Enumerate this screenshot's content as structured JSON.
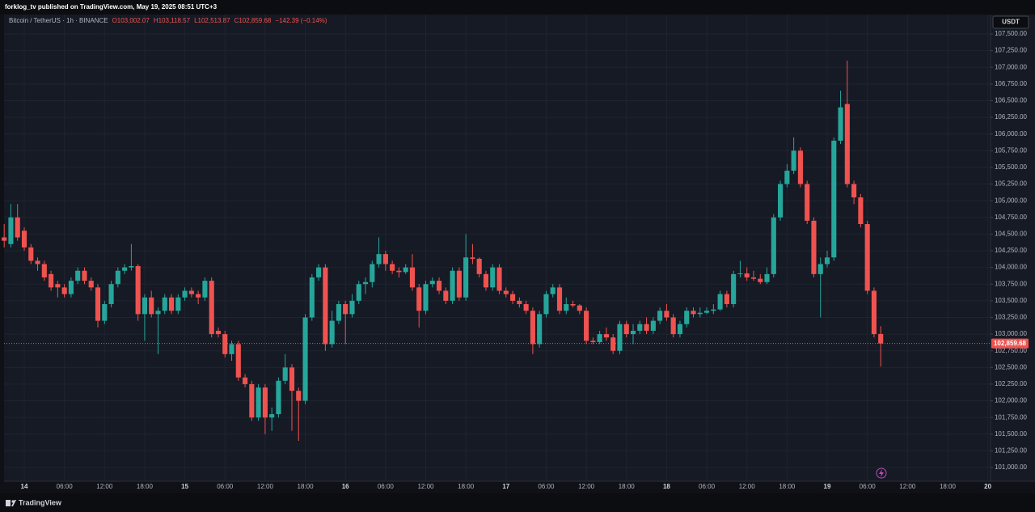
{
  "published": "forklog_tv published on TradingView.com, May 19, 2025 08:51 UTC+3",
  "footer": "TradingView",
  "chart_data": {
    "type": "candlestick",
    "title": "Bitcoin / TetherUS · 1h · BINANCE",
    "legend_values": [
      "O103,002.07",
      "H103,118.57",
      "L102,513.87",
      "C102,859.68",
      "−142.39 (−0.14%)"
    ],
    "currency": "USDT",
    "up_color": "#26a69a",
    "down_color": "#ef5350",
    "grid": true,
    "last_price": {
      "value": 102859.68,
      "label": "102,859.68"
    },
    "x": [
      -3,
      -2,
      -1,
      0,
      1,
      2,
      3,
      4,
      5,
      6,
      7,
      8,
      9,
      10,
      11,
      12,
      13,
      14,
      15,
      16,
      17,
      18,
      19,
      20,
      21,
      22,
      23,
      24,
      25,
      26,
      27,
      28,
      29,
      30,
      31,
      32,
      33,
      34,
      35,
      36,
      37,
      38,
      39,
      40,
      41,
      42,
      43,
      44,
      45,
      46,
      47,
      48,
      49,
      50,
      51,
      52,
      53,
      54,
      55,
      56,
      57,
      58,
      59,
      60,
      61,
      62,
      63,
      64,
      65,
      66,
      67,
      68,
      69,
      70,
      71,
      72,
      73,
      74,
      75,
      76,
      77,
      78,
      79,
      80,
      81,
      82,
      83,
      84,
      85,
      86,
      87,
      88,
      89,
      90,
      91,
      92,
      93,
      94,
      95,
      96,
      97,
      98,
      99,
      100,
      101,
      102,
      103,
      104,
      105,
      106,
      107,
      108,
      109,
      110,
      111,
      112,
      113,
      114,
      115,
      116,
      117,
      118,
      119,
      120,
      121,
      122,
      123,
      124,
      125,
      126,
      127,
      128
    ],
    "open": [
      104450,
      104350,
      104750,
      104550,
      104300,
      104100,
      104050,
      103900,
      103750,
      103700,
      103600,
      103800,
      103950,
      103800,
      103700,
      103200,
      103450,
      103750,
      103950,
      104000,
      104020,
      103300,
      103550,
      103300,
      103350,
      103550,
      103350,
      103550,
      103650,
      103600,
      103550,
      103800,
      103050,
      103000,
      102700,
      102850,
      102350,
      102250,
      101750,
      102200,
      101750,
      101800,
      102300,
      102500,
      102150,
      102000,
      103250,
      103850,
      104000,
      102850,
      103200,
      103450,
      103300,
      103500,
      103750,
      103780,
      104050,
      104200,
      104050,
      103950,
      103930,
      104000,
      103700,
      103350,
      103750,
      103800,
      103650,
      103500,
      103950,
      103550,
      104150,
      104130,
      103900,
      103700,
      104000,
      103650,
      103600,
      103500,
      103450,
      103350,
      102850,
      103300,
      103600,
      103700,
      103350,
      103450,
      103430,
      103350,
      102900,
      102880,
      103000,
      102950,
      102750,
      103150,
      103000,
      103050,
      103150,
      103050,
      103200,
      103350,
      103250,
      103000,
      103150,
      103350,
      103300,
      103320,
      103350,
      103370,
      103600,
      103450,
      103900,
      103910,
      103850,
      103830,
      103780,
      103900,
      104750,
      105250,
      105450,
      105750,
      105250,
      104700,
      103900,
      104050,
      104150,
      105900,
      106450,
      105250,
      105050,
      104650,
      103650,
      103002.07
    ],
    "high": [
      104650,
      104950,
      104950,
      104600,
      104350,
      104150,
      104100,
      103950,
      103800,
      103750,
      103850,
      104000,
      104000,
      103850,
      103750,
      103500,
      103800,
      104000,
      104050,
      104350,
      104050,
      103600,
      103650,
      103400,
      103600,
      103600,
      103600,
      103700,
      103700,
      103650,
      103850,
      103850,
      103100,
      103050,
      102900,
      102900,
      102400,
      102300,
      102250,
      102250,
      101900,
      102350,
      102700,
      102550,
      102200,
      103300,
      103900,
      104050,
      104050,
      103350,
      103500,
      103500,
      103600,
      103800,
      103850,
      104100,
      104450,
      104250,
      104100,
      104000,
      104050,
      104200,
      103750,
      103800,
      103850,
      103850,
      103700,
      104000,
      104000,
      104500,
      104350,
      104150,
      103950,
      104050,
      104050,
      103700,
      103650,
      103550,
      103500,
      103400,
      103350,
      103650,
      103750,
      103750,
      103550,
      103500,
      103450,
      103400,
      102950,
      103050,
      103100,
      103000,
      103200,
      103200,
      103150,
      103200,
      103250,
      103250,
      103400,
      103450,
      103300,
      103200,
      103400,
      103400,
      103400,
      103400,
      103450,
      103650,
      103650,
      103950,
      104100,
      104000,
      103950,
      103900,
      104000,
      104800,
      105300,
      105550,
      105950,
      105800,
      105300,
      104750,
      104150,
      104250,
      105950,
      106650,
      107100,
      105300,
      105100,
      104700,
      103700,
      103118.57
    ],
    "low": [
      104300,
      104300,
      104400,
      104250,
      104050,
      103950,
      103800,
      103650,
      103550,
      103550,
      103550,
      103750,
      103750,
      103650,
      103100,
      103150,
      103400,
      103700,
      103900,
      103950,
      103200,
      102900,
      103250,
      102700,
      103300,
      103300,
      103300,
      103500,
      103550,
      103450,
      103500,
      102950,
      102950,
      102650,
      102600,
      102300,
      102200,
      101700,
      101700,
      101500,
      101550,
      101750,
      102250,
      101550,
      101400,
      101950,
      103200,
      103800,
      102750,
      102800,
      103150,
      102850,
      103250,
      103450,
      103600,
      103700,
      104000,
      103950,
      103900,
      103850,
      103900,
      103650,
      103100,
      103300,
      103700,
      103600,
      103450,
      103450,
      103500,
      103500,
      104050,
      103850,
      103650,
      103650,
      103600,
      103550,
      103450,
      103400,
      103300,
      102700,
      102800,
      103250,
      103550,
      103300,
      103300,
      103400,
      103300,
      102850,
      102850,
      102850,
      102900,
      102700,
      102700,
      102950,
      102850,
      103000,
      103000,
      103000,
      103150,
      103200,
      102950,
      102950,
      103100,
      103250,
      103250,
      103300,
      103300,
      103350,
      103400,
      103400,
      103850,
      103800,
      103800,
      103750,
      103750,
      103850,
      104700,
      105200,
      105400,
      105200,
      104650,
      103850,
      103250,
      104000,
      104100,
      105850,
      105200,
      104950,
      104600,
      103600,
      102950,
      102513.87
    ],
    "close": [
      104400,
      104750,
      104450,
      104300,
      104100,
      104050,
      103850,
      103700,
      103700,
      103600,
      103800,
      103950,
      103800,
      103700,
      103200,
      103450,
      103750,
      103950,
      104000,
      104020,
      103300,
      103550,
      103300,
      103350,
      103550,
      103350,
      103550,
      103650,
      103600,
      103550,
      103800,
      103000,
      103000,
      102700,
      102850,
      102350,
      102250,
      101750,
      102200,
      101750,
      101800,
      102300,
      102500,
      102150,
      102000,
      103250,
      103850,
      104000,
      102850,
      103200,
      103450,
      103300,
      103500,
      103750,
      103780,
      104050,
      104200,
      104050,
      103950,
      103930,
      104000,
      103700,
      103350,
      103750,
      103800,
      103650,
      103500,
      103950,
      103550,
      104150,
      104130,
      103900,
      103700,
      104000,
      103650,
      103600,
      103500,
      103450,
      103350,
      102850,
      103300,
      103600,
      103700,
      103350,
      103450,
      103430,
      103350,
      102900,
      102880,
      103000,
      102950,
      102750,
      103150,
      103000,
      103050,
      103150,
      103050,
      103200,
      103350,
      103250,
      103000,
      103150,
      103350,
      103300,
      103320,
      103350,
      103370,
      103600,
      103450,
      103900,
      103910,
      103850,
      103830,
      103780,
      103900,
      104750,
      105250,
      105450,
      105750,
      105250,
      104700,
      103900,
      104050,
      104150,
      105900,
      106400,
      105250,
      105050,
      104650,
      103650,
      103000,
      102859.68
    ],
    "xlim": [
      -3.02,
      144.41
    ],
    "xticks": [
      {
        "value": 0,
        "label": "14"
      },
      {
        "value": 6,
        "label": "06:00"
      },
      {
        "value": 12,
        "label": "12:00"
      },
      {
        "value": 18,
        "label": "18:00"
      },
      {
        "value": 24,
        "label": "15"
      },
      {
        "value": 30,
        "label": "06:00"
      },
      {
        "value": 36,
        "label": "12:00"
      },
      {
        "value": 42,
        "label": "18:00"
      },
      {
        "value": 48,
        "label": "16"
      },
      {
        "value": 54,
        "label": "06:00"
      },
      {
        "value": 60,
        "label": "12:00"
      },
      {
        "value": 66,
        "label": "18:00"
      },
      {
        "value": 72,
        "label": "17"
      },
      {
        "value": 78,
        "label": "06:00"
      },
      {
        "value": 84,
        "label": "12:00"
      },
      {
        "value": 90,
        "label": "18:00"
      },
      {
        "value": 96,
        "label": "18"
      },
      {
        "value": 102,
        "label": "06:00"
      },
      {
        "value": 108,
        "label": "12:00"
      },
      {
        "value": 114,
        "label": "18:00"
      },
      {
        "value": 120,
        "label": "19"
      },
      {
        "value": 126,
        "label": "06:00"
      },
      {
        "value": 132,
        "label": "12:00"
      },
      {
        "value": 138,
        "label": "18:00"
      },
      {
        "value": 144,
        "label": "20"
      }
    ],
    "ylim": [
      100794,
      107791
    ],
    "yticks": [
      {
        "value": 101000,
        "label": "101,000.00"
      },
      {
        "value": 101250,
        "label": "101,250.00"
      },
      {
        "value": 101500,
        "label": "101,500.00"
      },
      {
        "value": 101750,
        "label": "101,750.00"
      },
      {
        "value": 102000,
        "label": "102,000.00"
      },
      {
        "value": 102250,
        "label": "102,250.00"
      },
      {
        "value": 102500,
        "label": "102,500.00"
      },
      {
        "value": 102750,
        "label": "102,750.00"
      },
      {
        "value": 103000,
        "label": "103,000.00"
      },
      {
        "value": 103250,
        "label": "103,250.00"
      },
      {
        "value": 103500,
        "label": "103,500.00"
      },
      {
        "value": 103750,
        "label": "103,750.00"
      },
      {
        "value": 104000,
        "label": "104,000.00"
      },
      {
        "value": 104250,
        "label": "104,250.00"
      },
      {
        "value": 104500,
        "label": "104,500.00"
      },
      {
        "value": 104750,
        "label": "104,750.00"
      },
      {
        "value": 105000,
        "label": "105,000.00"
      },
      {
        "value": 105250,
        "label": "105,250.00"
      },
      {
        "value": 105500,
        "label": "105,500.00"
      },
      {
        "value": 105750,
        "label": "105,750.00"
      },
      {
        "value": 106000,
        "label": "106,000.00"
      },
      {
        "value": 106250,
        "label": "106,250.00"
      },
      {
        "value": 106500,
        "label": "106,500.00"
      },
      {
        "value": 106750,
        "label": "106,750.00"
      },
      {
        "value": 107000,
        "label": "107,000.00"
      },
      {
        "value": 107250,
        "label": "107,250.00"
      },
      {
        "value": 107500,
        "label": "107,500.00"
      }
    ]
  }
}
